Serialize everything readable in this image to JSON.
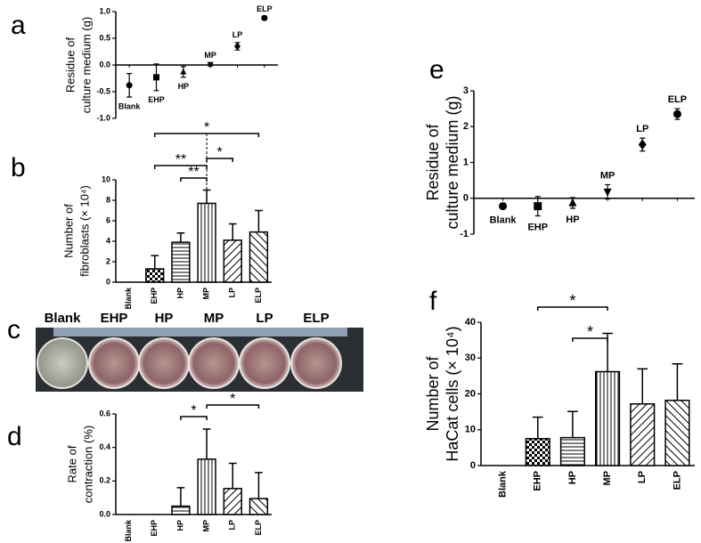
{
  "chart_data": [
    {
      "type": "scatter",
      "panel": "a",
      "ylabel": [
        "Residue of",
        "culture medium (g)"
      ],
      "categories": [
        "Blank",
        "EHP",
        "HP",
        "MP",
        "LP",
        "ELP"
      ],
      "values": [
        -0.38,
        -0.23,
        -0.13,
        0.01,
        0.35,
        0.88
      ],
      "errors": [
        0.22,
        0.25,
        0.1,
        0.03,
        0.07,
        0.03
      ],
      "markers": [
        "circle",
        "square",
        "triangle-up",
        "triangle-down",
        "diamond",
        "circle"
      ],
      "ylim": [
        -1,
        1
      ],
      "yticks": [
        {
          "value": -1,
          "label": "-1.0"
        },
        {
          "value": -0.5,
          "label": "-0.5"
        },
        {
          "value": 0,
          "label": "0.0"
        },
        {
          "value": 0.5,
          "label": "0.5"
        },
        {
          "value": 1,
          "label": "1.0"
        }
      ]
    },
    {
      "type": "bar",
      "panel": "b",
      "ylabel": [
        "Number of",
        "fibroblasts (× 10⁴)"
      ],
      "categories": [
        "Blank",
        "EHP",
        "HP",
        "MP",
        "LP",
        "ELP"
      ],
      "values": [
        0,
        1.3,
        3.9,
        7.7,
        4.1,
        4.9
      ],
      "errors": [
        0,
        1.3,
        0.9,
        1.3,
        1.6,
        2.1
      ],
      "hatches": [
        "none",
        "checker",
        "hlines",
        "vlines",
        "diag-up",
        "diag-down"
      ],
      "ylim": [
        0,
        10
      ],
      "yticks": [
        0,
        2,
        4,
        6,
        8,
        10
      ],
      "brackets": [
        {
          "between": [
            "EHP",
            "ELP"
          ],
          "label": "*"
        },
        {
          "between": [
            "EHP",
            "MP"
          ],
          "label": "**"
        },
        {
          "between": [
            "HP",
            "MP"
          ],
          "label": "**"
        },
        {
          "between": [
            "MP",
            "LP"
          ],
          "label": "*"
        }
      ]
    },
    {
      "type": "photo",
      "panel": "c",
      "categories": [
        "Blank",
        "EHP",
        "HP",
        "MP",
        "LP",
        "ELP"
      ]
    },
    {
      "type": "bar",
      "panel": "d",
      "ylabel": [
        "Rate of",
        "contraction (%)"
      ],
      "categories": [
        "Blank",
        "EHP",
        "HP",
        "MP",
        "LP",
        "ELP"
      ],
      "values": [
        0,
        0,
        0.05,
        0.33,
        0.155,
        0.095
      ],
      "errors": [
        0,
        0,
        0.11,
        0.18,
        0.15,
        0.155
      ],
      "hatches": [
        "none",
        "checker",
        "hlines",
        "vlines",
        "diag-up",
        "diag-down"
      ],
      "ylim": [
        0,
        0.6
      ],
      "yticks": [
        {
          "value": 0,
          "label": "0.0"
        },
        {
          "value": 0.2,
          "label": "0.2"
        },
        {
          "value": 0.4,
          "label": "0.4"
        },
        {
          "value": 0.6,
          "label": "0.6"
        }
      ],
      "brackets": [
        {
          "between": [
            "HP",
            "MP"
          ],
          "label": "*"
        },
        {
          "between": [
            "MP",
            "ELP"
          ],
          "label": "*"
        }
      ]
    },
    {
      "type": "scatter",
      "panel": "e",
      "ylabel": [
        "Residue of",
        "culture medium (g)"
      ],
      "categories": [
        "Blank",
        "EHP",
        "HP",
        "MP",
        "LP",
        "ELP"
      ],
      "values": [
        -0.22,
        -0.22,
        -0.13,
        0.18,
        1.5,
        2.35
      ],
      "errors": [
        0.08,
        0.27,
        0.15,
        0.2,
        0.18,
        0.15
      ],
      "markers": [
        "circle",
        "square",
        "triangle-up",
        "triangle-down",
        "diamond",
        "circle"
      ],
      "ylim": [
        -1,
        3
      ],
      "yticks": [
        -1,
        0,
        1,
        2,
        3
      ]
    },
    {
      "type": "bar",
      "panel": "f",
      "ylabel": [
        "Number of",
        "HaCat cells (× 10⁴)"
      ],
      "categories": [
        "Blank",
        "EHP",
        "HP",
        "MP",
        "LP",
        "ELP"
      ],
      "values": [
        0,
        7.5,
        7.8,
        26.2,
        17.2,
        18.2
      ],
      "errors": [
        0,
        6,
        7.3,
        10.7,
        9.8,
        10.2
      ],
      "hatches": [
        "none",
        "checker",
        "hlines",
        "vlines",
        "diag-up",
        "diag-down"
      ],
      "ylim": [
        0,
        40
      ],
      "yticks": [
        0,
        10,
        20,
        30,
        40
      ],
      "brackets": [
        {
          "between": [
            "EHP",
            "MP"
          ],
          "label": "*"
        },
        {
          "between": [
            "HP",
            "MP"
          ],
          "label": "*"
        }
      ]
    }
  ]
}
